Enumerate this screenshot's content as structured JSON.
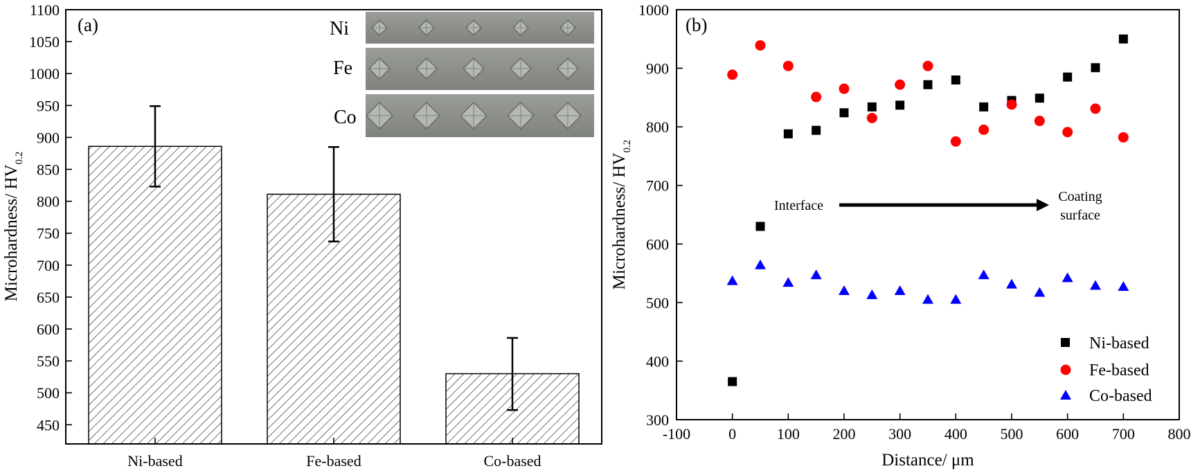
{
  "colors": {
    "ni": "#000000",
    "fe": "#ff0000",
    "co": "#0000ff",
    "axis": "#000000",
    "inset_bg": "#8a8d88"
  },
  "chart_data": [
    {
      "type": "bar",
      "panel_label": "(a)",
      "categories": [
        "Ni-based",
        "Fe-based",
        "Co-based"
      ],
      "values": [
        886,
        811,
        530
      ],
      "error_upper": [
        949,
        885,
        586
      ],
      "error_lower": [
        823,
        737,
        473
      ],
      "ylabel": "Microhardness/ HV",
      "ylabel_sub": "0.2",
      "ylim": [
        420,
        1100
      ],
      "yticks": [
        "450",
        "500",
        "550",
        "600",
        "650",
        "700",
        "750",
        "800",
        "850",
        "900",
        "950",
        "1000",
        "1050",
        "1100"
      ],
      "bar_fill": "hatched",
      "inset_labels": [
        "Ni",
        "Fe",
        "Co"
      ]
    },
    {
      "type": "scatter",
      "panel_label": "(b)",
      "xlabel": "Distance/ μm",
      "ylabel": "Microhardness/ HV",
      "ylabel_sub": "0.2",
      "xlim": [
        -100,
        800
      ],
      "ylim": [
        300,
        1000
      ],
      "xticks": [
        "-100",
        "0",
        "100",
        "200",
        "300",
        "400",
        "500",
        "600",
        "700",
        "800"
      ],
      "yticks": [
        "300",
        "400",
        "500",
        "600",
        "700",
        "800",
        "900",
        "1000"
      ],
      "x": [
        0,
        50,
        100,
        150,
        200,
        250,
        300,
        350,
        400,
        450,
        500,
        550,
        600,
        650,
        700
      ],
      "series": [
        {
          "name": "Ni-based",
          "marker": "square",
          "values": [
            365,
            630,
            788,
            794,
            824,
            834,
            837,
            872,
            880,
            834,
            845,
            849,
            885,
            901,
            950
          ]
        },
        {
          "name": "Fe-based",
          "marker": "circle",
          "values": [
            889,
            939,
            904,
            851,
            865,
            815,
            872,
            904,
            775,
            795,
            838,
            810,
            791,
            831,
            782
          ]
        },
        {
          "name": "Co-based",
          "marker": "triangle",
          "values": [
            537,
            564,
            534,
            547,
            520,
            513,
            520,
            505,
            505,
            547,
            531,
            517,
            542,
            529,
            527
          ]
        }
      ],
      "legend_position": "bottom-right",
      "annotation": {
        "start_label": "Interface",
        "end_label_line1": "Coating",
        "end_label_line2": "surface"
      }
    }
  ]
}
